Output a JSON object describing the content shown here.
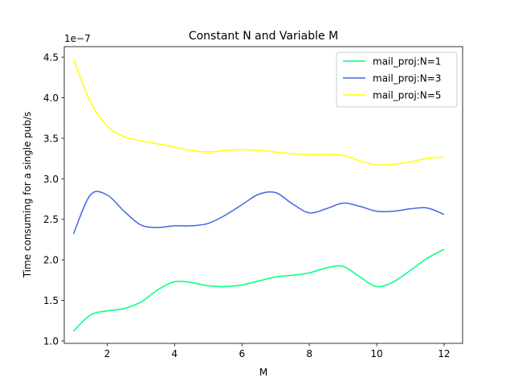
{
  "chart_data": {
    "type": "line",
    "title": "Constant N and Variable M",
    "xlabel": "M",
    "ylabel": "Time consuming for a single pub/s",
    "y_offset_label": "1e−7",
    "xlim": [
      0.725,
      12.55
    ],
    "ylim": [
      0.97,
      4.63
    ],
    "x_ticks": [
      2,
      4,
      6,
      8,
      10,
      12
    ],
    "y_ticks": [
      1.0,
      1.5,
      2.0,
      2.5,
      3.0,
      3.5,
      4.0,
      4.5
    ],
    "x_tick_labels": [
      "2",
      "4",
      "6",
      "8",
      "10",
      "12"
    ],
    "y_tick_labels": [
      "1.0",
      "1.5",
      "2.0",
      "2.5",
      "3.0",
      "3.5",
      "4.0",
      "4.5"
    ],
    "grid": false,
    "legend_position": "top-right",
    "series": [
      {
        "name": "mail_proj:N=1",
        "color": "#00ff7f",
        "x": [
          1,
          1.5,
          2,
          2.5,
          3,
          3.5,
          4,
          4.5,
          5,
          5.5,
          6,
          6.5,
          7,
          7.5,
          8,
          8.5,
          9,
          9.5,
          10,
          10.5,
          11,
          11.5,
          12
        ],
        "y": [
          1.12,
          1.32,
          1.37,
          1.4,
          1.48,
          1.63,
          1.73,
          1.72,
          1.68,
          1.67,
          1.69,
          1.74,
          1.79,
          1.81,
          1.84,
          1.9,
          1.92,
          1.79,
          1.67,
          1.73,
          1.87,
          2.02,
          2.13
        ]
      },
      {
        "name": "mail_proj:N=3",
        "color": "#4169e1",
        "x": [
          1,
          1.5,
          2,
          2.5,
          3,
          3.5,
          4,
          4.5,
          5,
          5.5,
          6,
          6.5,
          7,
          7.5,
          8,
          8.5,
          9,
          9.5,
          10,
          10.5,
          11,
          11.5,
          12
        ],
        "y": [
          2.32,
          2.8,
          2.8,
          2.6,
          2.43,
          2.4,
          2.42,
          2.42,
          2.45,
          2.55,
          2.68,
          2.81,
          2.83,
          2.69,
          2.58,
          2.63,
          2.7,
          2.66,
          2.6,
          2.6,
          2.63,
          2.64,
          2.56
        ]
      },
      {
        "name": "mail_proj:N=5",
        "color": "#ffff00",
        "x": [
          1,
          1.5,
          2,
          2.5,
          3,
          3.5,
          4,
          4.5,
          5,
          5.5,
          6,
          6.5,
          7,
          7.5,
          8,
          8.5,
          9,
          9.5,
          10,
          10.5,
          11,
          11.5,
          12
        ],
        "y": [
          4.47,
          3.95,
          3.65,
          3.52,
          3.47,
          3.43,
          3.39,
          3.35,
          3.33,
          3.35,
          3.36,
          3.35,
          3.33,
          3.31,
          3.3,
          3.3,
          3.29,
          3.22,
          3.17,
          3.18,
          3.21,
          3.25,
          3.27
        ]
      }
    ]
  }
}
